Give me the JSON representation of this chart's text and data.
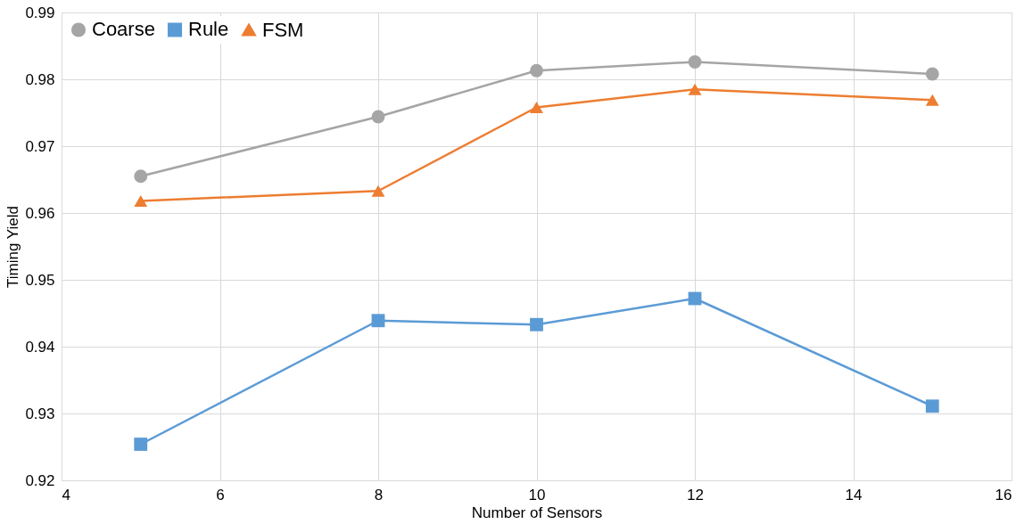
{
  "chart_data": {
    "type": "line",
    "xlabel": "Number of Sensors",
    "ylabel": "Timing Yield",
    "x": [
      5,
      8,
      10,
      12,
      15
    ],
    "series": [
      {
        "name": "Coarse",
        "color": "#a5a5a5",
        "marker": "circle",
        "values": [
          0.9655,
          0.9744,
          0.9813,
          0.9826,
          0.9808
        ]
      },
      {
        "name": "Rule",
        "color": "#5b9bd5",
        "marker": "square",
        "values": [
          0.9254,
          0.9439,
          0.9433,
          0.9472,
          0.9311
        ]
      },
      {
        "name": "FSM",
        "color": "#ed7d31",
        "marker": "triangle",
        "values": [
          0.9618,
          0.9633,
          0.9758,
          0.9785,
          0.9769
        ]
      }
    ],
    "xlim": [
      4,
      16
    ],
    "xticks": [
      4,
      6,
      8,
      10,
      12,
      14,
      16
    ],
    "ylim": [
      0.92,
      0.99
    ],
    "yticks": [
      0.92,
      0.93,
      0.94,
      0.95,
      0.96,
      0.97,
      0.98,
      0.99
    ],
    "grid": true,
    "legend": "top left",
    "line_style": "solid"
  }
}
